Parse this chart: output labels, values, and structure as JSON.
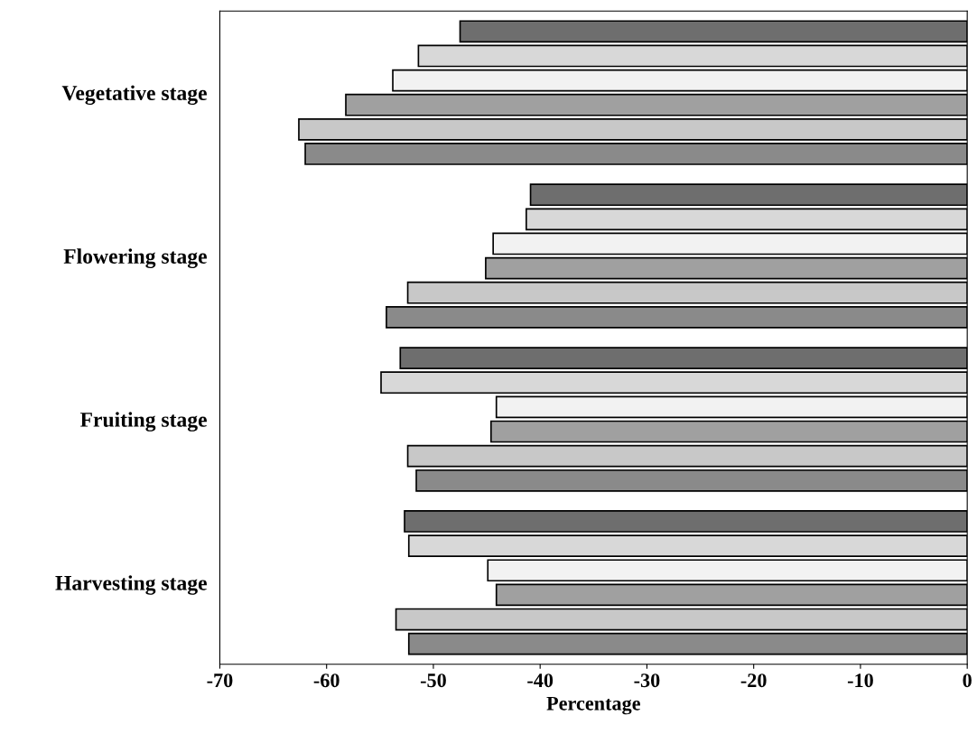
{
  "chart_data": {
    "type": "bar",
    "orientation": "horizontal",
    "xlabel": "Percentage",
    "categories": [
      "Vegetative stage",
      "Flowering stage",
      "Fruiting stage",
      "Harvesting stage"
    ],
    "series": [
      {
        "color": "#6e6e6e",
        "values": [
          -47.5,
          -40.9,
          -53.1,
          -52.7
        ]
      },
      {
        "color": "#d8d8d8",
        "values": [
          -51.4,
          -41.3,
          -54.9,
          -52.3
        ]
      },
      {
        "color": "#f2f2f2",
        "values": [
          -53.8,
          -44.4,
          -44.1,
          -44.9
        ]
      },
      {
        "color": "#a0a0a0",
        "values": [
          -58.2,
          -45.1,
          -44.6,
          -44.1
        ]
      },
      {
        "color": "#c8c8c8",
        "values": [
          -62.6,
          -52.4,
          -52.4,
          -53.5
        ]
      },
      {
        "color": "#8a8a8a",
        "values": [
          -62.0,
          -54.4,
          -51.6,
          -52.3
        ]
      }
    ],
    "xlim": [
      -70,
      0
    ],
    "xticks": [
      -70,
      -60,
      -50,
      -40,
      -30,
      -20,
      -10,
      0
    ],
    "grid": false
  }
}
